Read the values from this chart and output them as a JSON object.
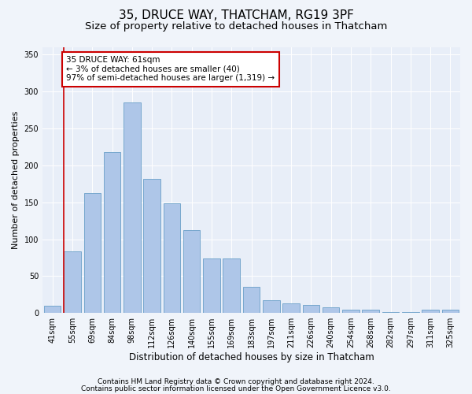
{
  "title1": "35, DRUCE WAY, THATCHAM, RG19 3PF",
  "title2": "Size of property relative to detached houses in Thatcham",
  "xlabel": "Distribution of detached houses by size in Thatcham",
  "ylabel": "Number of detached properties",
  "categories": [
    "41sqm",
    "55sqm",
    "69sqm",
    "84sqm",
    "98sqm",
    "112sqm",
    "126sqm",
    "140sqm",
    "155sqm",
    "169sqm",
    "183sqm",
    "197sqm",
    "211sqm",
    "226sqm",
    "240sqm",
    "254sqm",
    "268sqm",
    "282sqm",
    "297sqm",
    "311sqm",
    "325sqm"
  ],
  "values": [
    10,
    84,
    163,
    218,
    285,
    182,
    149,
    112,
    74,
    74,
    35,
    17,
    13,
    11,
    8,
    5,
    5,
    1,
    1,
    4,
    4
  ],
  "bar_color": "#aec6e8",
  "bar_edge_color": "#6a9fc8",
  "vline_color": "#cc0000",
  "vline_x_idx": 1,
  "annotation_text": "35 DRUCE WAY: 61sqm\n← 3% of detached houses are smaller (40)\n97% of semi-detached houses are larger (1,319) →",
  "annotation_box_color": "#ffffff",
  "annotation_box_edge": "#cc0000",
  "ylim": [
    0,
    360
  ],
  "yticks": [
    0,
    50,
    100,
    150,
    200,
    250,
    300,
    350
  ],
  "footer1": "Contains HM Land Registry data © Crown copyright and database right 2024.",
  "footer2": "Contains public sector information licensed under the Open Government Licence v3.0.",
  "bg_color": "#f0f4fa",
  "plot_bg_color": "#e8eef8",
  "title1_fontsize": 11,
  "title2_fontsize": 9.5,
  "xlabel_fontsize": 8.5,
  "ylabel_fontsize": 8,
  "tick_fontsize": 7,
  "annot_fontsize": 7.5,
  "footer_fontsize": 6.5
}
